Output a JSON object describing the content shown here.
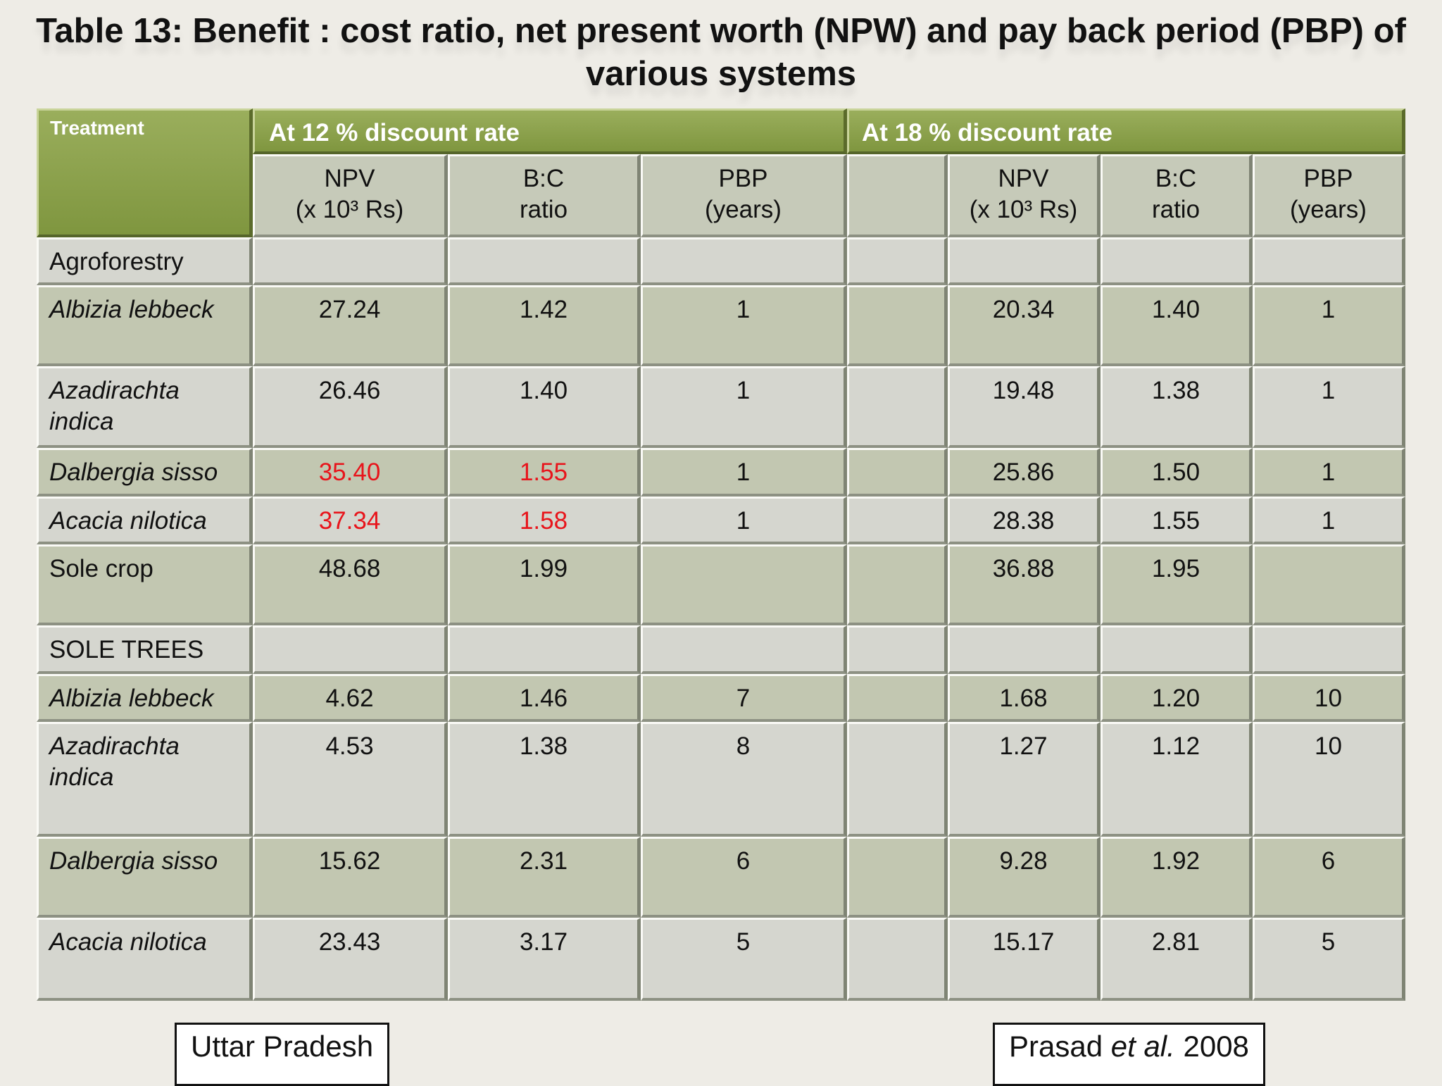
{
  "title": "Table  13: Benefit : cost ratio, net present worth (NPW) and pay back period (PBP) of various systems",
  "table": {
    "treatment_header": "Treatment",
    "group_12": "At 12 % discount rate",
    "group_18": "At 18 % discount  rate",
    "subheaders_12": [
      [
        "NPV",
        "(x 10³ Rs)"
      ],
      [
        "B:C",
        "ratio"
      ],
      [
        "PBP",
        "(years)"
      ]
    ],
    "subheaders_18": [
      [
        "NPV",
        "(x 10³ Rs)"
      ],
      [
        "B:C",
        "ratio"
      ],
      [
        "PBP",
        "(years)"
      ]
    ],
    "highlight_color": "#e8141b",
    "rows": [
      {
        "label": "Agroforestry",
        "italic": false,
        "cells": [
          null,
          null,
          null,
          null,
          null,
          null
        ]
      },
      {
        "label": "Albizia lebbeck",
        "italic": true,
        "cells": [
          "27.24",
          "1.42",
          "1",
          "20.34",
          "1.40",
          "1"
        ]
      },
      {
        "label": "Azadirachta indica",
        "italic": true,
        "cells": [
          "26.46",
          "1.40",
          "1",
          "19.48",
          "1.38",
          "1"
        ]
      },
      {
        "label": "Dalbergia sisso",
        "italic": true,
        "cells": [
          {
            "text": "35.40",
            "highlight": true
          },
          {
            "text": "1.55",
            "highlight": true
          },
          "1",
          "25.86",
          "1.50",
          "1"
        ]
      },
      {
        "label": "Acacia nilotica",
        "italic": true,
        "cells": [
          {
            "text": "37.34",
            "highlight": true
          },
          {
            "text": "1.58",
            "highlight": true
          },
          "1",
          "28.38",
          "1.55",
          "1"
        ]
      },
      {
        "label": "Sole crop",
        "italic": false,
        "cells": [
          "48.68",
          "1.99",
          null,
          "36.88",
          "1.95",
          null
        ]
      },
      {
        "label": "SOLE TREES",
        "italic": false,
        "cells": [
          null,
          null,
          null,
          null,
          null,
          null
        ]
      },
      {
        "label": "Albizia lebbeck",
        "italic": true,
        "cells": [
          "4.62",
          "1.46",
          "7",
          "1.68",
          "1.20",
          "10"
        ]
      },
      {
        "label": "Azadirachta indica",
        "italic": true,
        "cells": [
          "4.53",
          "1.38",
          "8",
          "1.27",
          "1.12",
          "10"
        ]
      },
      {
        "label": "Dalbergia sisso",
        "italic": true,
        "cells": [
          "15.62",
          "2.31",
          "6",
          "9.28",
          "1.92",
          "6"
        ]
      },
      {
        "label": "Acacia nilotica",
        "italic": true,
        "cells": [
          "23.43",
          "3.17",
          "5",
          "15.17",
          "2.81",
          "5"
        ]
      }
    ]
  },
  "footer": {
    "location": "Uttar Pradesh",
    "source_author": "Prasad",
    "source_etal": "et al.",
    "source_year": "2008"
  }
}
